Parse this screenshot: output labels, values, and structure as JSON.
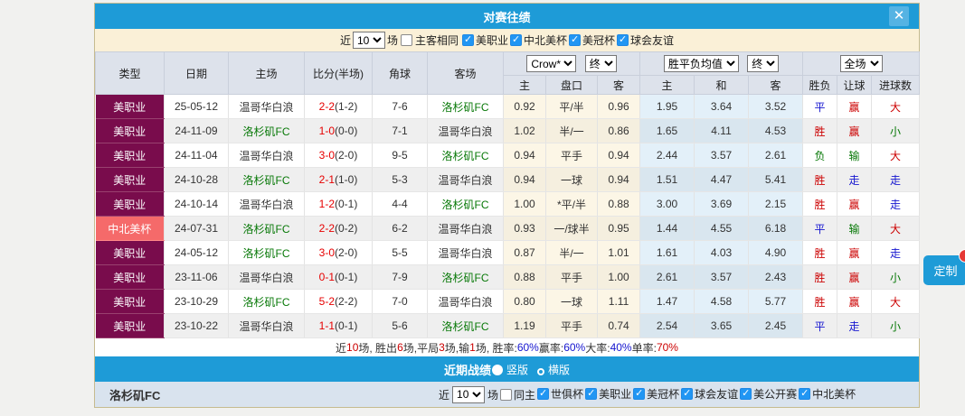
{
  "page": {
    "customize_button": "定制"
  },
  "dialog": {
    "title": "对赛往绩",
    "close_label": "✕"
  },
  "top_filter": {
    "near_label": "近",
    "count": "10",
    "games_label": "场",
    "venue_label": "主客相同",
    "venue_checked": false,
    "leagues": [
      {
        "label": "美职业",
        "checked": true
      },
      {
        "label": "中北美杯",
        "checked": true
      },
      {
        "label": "美冠杯",
        "checked": true
      },
      {
        "label": "球会友谊",
        "checked": true
      }
    ]
  },
  "table": {
    "headers": {
      "type": "类型",
      "date": "日期",
      "home": "主场",
      "score": "比分(半场)",
      "corner": "角球",
      "away": "客场"
    },
    "dropdowns": {
      "bookmaker": "Crow*",
      "asian_stage": "终",
      "euro": "胜平负均值",
      "euro_stage": "终",
      "scope": "全场"
    },
    "sub_headers": [
      "主",
      "盘口",
      "客",
      "主",
      "和",
      "客",
      "胜负",
      "让球",
      "进球数"
    ],
    "rows": [
      {
        "type": "美职业",
        "type_color": "maroon",
        "date": "25-05-12",
        "home": "温哥华白浪",
        "home_color": "dark",
        "score": "2-2",
        "half": "(1-2)",
        "corner": "7-6",
        "away": "洛杉矶FC",
        "away_color": "green",
        "asian": [
          "0.92",
          "平/半",
          "0.96"
        ],
        "euro": [
          "1.95",
          "3.64",
          "3.52"
        ],
        "results": [
          {
            "t": "平",
            "c": "blue"
          },
          {
            "t": "赢",
            "c": "red"
          },
          {
            "t": "大",
            "c": "red"
          }
        ]
      },
      {
        "type": "美职业",
        "type_color": "maroon",
        "date": "24-11-09",
        "home": "洛杉矶FC",
        "home_color": "green",
        "score": "1-0",
        "half": "(0-0)",
        "corner": "7-1",
        "away": "温哥华白浪",
        "away_color": "dark",
        "asian": [
          "1.02",
          "半/一",
          "0.86"
        ],
        "euro": [
          "1.65",
          "4.11",
          "4.53"
        ],
        "results": [
          {
            "t": "胜",
            "c": "red"
          },
          {
            "t": "赢",
            "c": "red"
          },
          {
            "t": "小",
            "c": "green"
          }
        ]
      },
      {
        "type": "美职业",
        "type_color": "maroon",
        "date": "24-11-04",
        "home": "温哥华白浪",
        "home_color": "dark",
        "score": "3-0",
        "half": "(2-0)",
        "corner": "9-5",
        "away": "洛杉矶FC",
        "away_color": "green",
        "asian": [
          "0.94",
          "平手",
          "0.94"
        ],
        "euro": [
          "2.44",
          "3.57",
          "2.61"
        ],
        "results": [
          {
            "t": "负",
            "c": "green"
          },
          {
            "t": "输",
            "c": "green"
          },
          {
            "t": "大",
            "c": "red"
          }
        ]
      },
      {
        "type": "美职业",
        "type_color": "maroon",
        "date": "24-10-28",
        "home": "洛杉矶FC",
        "home_color": "green",
        "score": "2-1",
        "half": "(1-0)",
        "corner": "5-3",
        "away": "温哥华白浪",
        "away_color": "dark",
        "asian": [
          "0.94",
          "一球",
          "0.94"
        ],
        "euro": [
          "1.51",
          "4.47",
          "5.41"
        ],
        "results": [
          {
            "t": "胜",
            "c": "red"
          },
          {
            "t": "走",
            "c": "blue"
          },
          {
            "t": "走",
            "c": "blue"
          }
        ]
      },
      {
        "type": "美职业",
        "type_color": "maroon",
        "date": "24-10-14",
        "home": "温哥华白浪",
        "home_color": "dark",
        "score": "1-2",
        "half": "(0-1)",
        "corner": "4-4",
        "away": "洛杉矶FC",
        "away_color": "green",
        "asian": [
          "1.00",
          "*平/半",
          "0.88"
        ],
        "euro": [
          "3.00",
          "3.69",
          "2.15"
        ],
        "results": [
          {
            "t": "胜",
            "c": "red"
          },
          {
            "t": "赢",
            "c": "red"
          },
          {
            "t": "走",
            "c": "blue"
          }
        ]
      },
      {
        "type": "中北美杯",
        "type_color": "pink",
        "date": "24-07-31",
        "home": "洛杉矶FC",
        "home_color": "green",
        "score": "2-2",
        "half": "(0-2)",
        "corner": "6-2",
        "away": "温哥华白浪",
        "away_color": "dark",
        "asian": [
          "0.93",
          "一/球半",
          "0.95"
        ],
        "euro": [
          "1.44",
          "4.55",
          "6.18"
        ],
        "results": [
          {
            "t": "平",
            "c": "blue"
          },
          {
            "t": "输",
            "c": "green"
          },
          {
            "t": "大",
            "c": "red"
          }
        ]
      },
      {
        "type": "美职业",
        "type_color": "maroon",
        "date": "24-05-12",
        "home": "洛杉矶FC",
        "home_color": "green",
        "score": "3-0",
        "half": "(2-0)",
        "corner": "5-5",
        "away": "温哥华白浪",
        "away_color": "dark",
        "asian": [
          "0.87",
          "半/一",
          "1.01"
        ],
        "euro": [
          "1.61",
          "4.03",
          "4.90"
        ],
        "results": [
          {
            "t": "胜",
            "c": "red"
          },
          {
            "t": "赢",
            "c": "red"
          },
          {
            "t": "走",
            "c": "blue"
          }
        ]
      },
      {
        "type": "美职业",
        "type_color": "maroon",
        "date": "23-11-06",
        "home": "温哥华白浪",
        "home_color": "dark",
        "score": "0-1",
        "half": "(0-1)",
        "corner": "7-9",
        "away": "洛杉矶FC",
        "away_color": "green",
        "asian": [
          "0.88",
          "平手",
          "1.00"
        ],
        "euro": [
          "2.61",
          "3.57",
          "2.43"
        ],
        "results": [
          {
            "t": "胜",
            "c": "red"
          },
          {
            "t": "赢",
            "c": "red"
          },
          {
            "t": "小",
            "c": "green"
          }
        ]
      },
      {
        "type": "美职业",
        "type_color": "maroon",
        "date": "23-10-29",
        "home": "洛杉矶FC",
        "home_color": "green",
        "score": "5-2",
        "half": "(2-2)",
        "corner": "7-0",
        "away": "温哥华白浪",
        "away_color": "dark",
        "asian": [
          "0.80",
          "一球",
          "1.11"
        ],
        "euro": [
          "1.47",
          "4.58",
          "5.77"
        ],
        "results": [
          {
            "t": "胜",
            "c": "red"
          },
          {
            "t": "赢",
            "c": "red"
          },
          {
            "t": "大",
            "c": "red"
          }
        ]
      },
      {
        "type": "美职业",
        "type_color": "maroon",
        "date": "23-10-22",
        "home": "温哥华白浪",
        "home_color": "dark",
        "score": "1-1",
        "half": "(0-1)",
        "corner": "5-6",
        "away": "洛杉矶FC",
        "away_color": "green",
        "asian": [
          "1.19",
          "平手",
          "0.74"
        ],
        "euro": [
          "2.54",
          "3.65",
          "2.45"
        ],
        "results": [
          {
            "t": "平",
            "c": "blue"
          },
          {
            "t": "走",
            "c": "blue"
          },
          {
            "t": "小",
            "c": "green"
          }
        ]
      }
    ]
  },
  "summary": {
    "segments": [
      {
        "t": "近 ",
        "c": "dark"
      },
      {
        "t": "10",
        "c": "red"
      },
      {
        "t": " 场, 胜出 ",
        "c": "dark"
      },
      {
        "t": "6",
        "c": "red"
      },
      {
        "t": " 场,平局 ",
        "c": "dark"
      },
      {
        "t": "3",
        "c": "red"
      },
      {
        "t": " 场,输 ",
        "c": "dark"
      },
      {
        "t": "1",
        "c": "red"
      },
      {
        "t": " 场, 胜率: ",
        "c": "dark"
      },
      {
        "t": "60%",
        "c": "blue"
      },
      {
        "t": " 赢率: ",
        "c": "dark"
      },
      {
        "t": "60%",
        "c": "blue"
      },
      {
        "t": " 大率: ",
        "c": "dark"
      },
      {
        "t": "40%",
        "c": "blue"
      },
      {
        "t": " 单率: ",
        "c": "dark"
      },
      {
        "t": "70%",
        "c": "red"
      }
    ]
  },
  "section_bar": {
    "title": "近期战绩",
    "options": [
      {
        "label": "竖版",
        "selected": true
      },
      {
        "label": "横版",
        "selected": false
      }
    ]
  },
  "bottom_filter": {
    "team": "洛杉矶FC",
    "near_label": "近",
    "count": "10",
    "games_label": "场",
    "home_label": "同主",
    "home_checked": false,
    "leagues": [
      {
        "label": "世俱杯",
        "checked": true
      },
      {
        "label": "美职业",
        "checked": true
      },
      {
        "label": "美冠杯",
        "checked": true
      },
      {
        "label": "球会友谊",
        "checked": true
      },
      {
        "label": "美公开赛",
        "checked": true
      },
      {
        "label": "中北美杯",
        "checked": true
      }
    ]
  },
  "colors": {
    "accent_blue": "#1E9BD7",
    "type_maroon": "#790C4C",
    "type_pink": "#F56A6A",
    "result_red": "#CC0000",
    "result_blue": "#1515CF",
    "result_green": "#077807",
    "score_red": "#E60000",
    "team_green": "#077807"
  }
}
